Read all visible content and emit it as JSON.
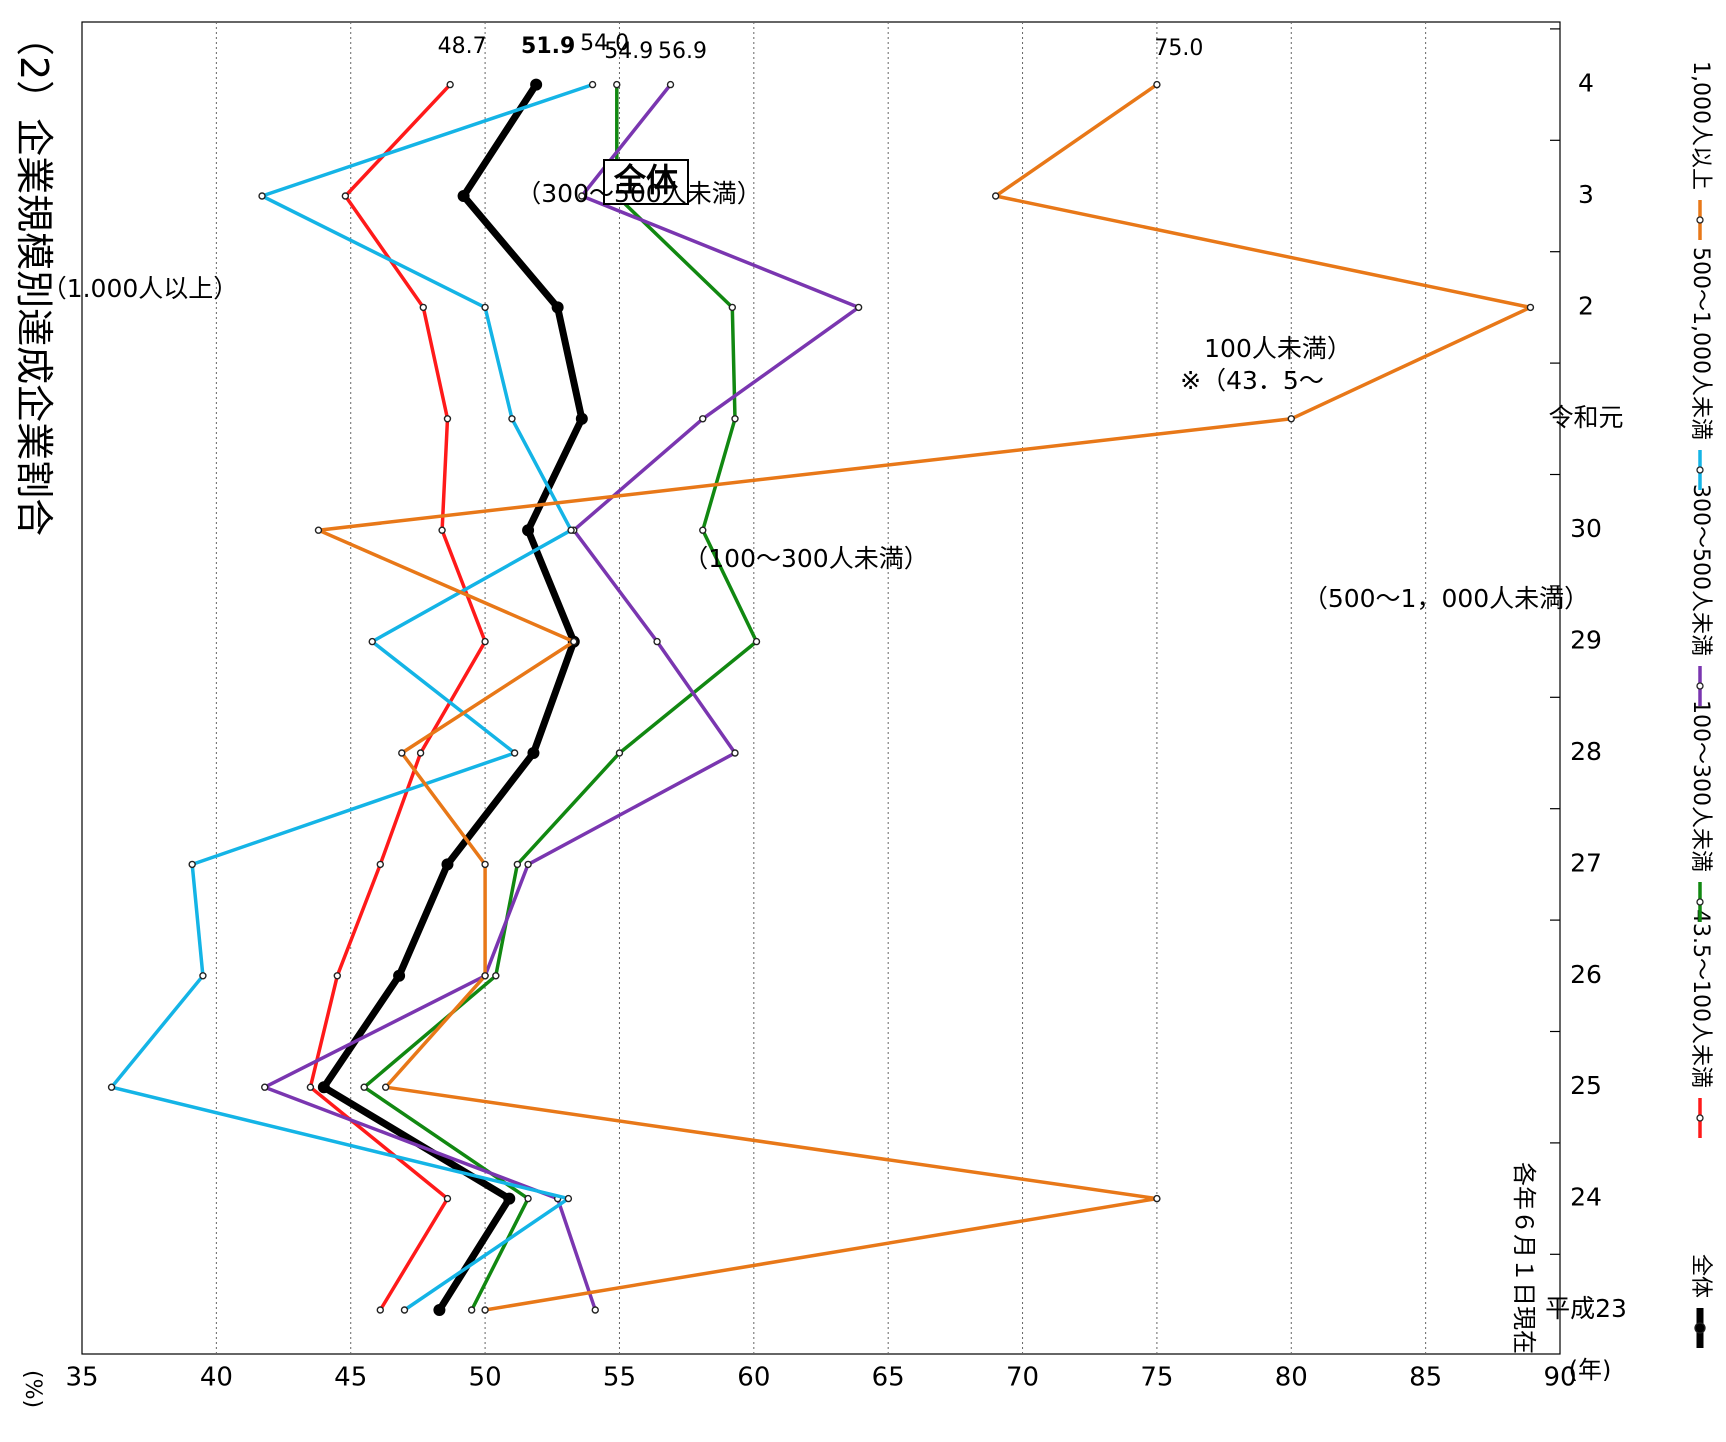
{
  "page": {
    "title": "（2）企業規模別達成企業割合",
    "date_note": "各年６月１日現在",
    "y_unit": "(%)",
    "x_unit": "(年)"
  },
  "chart_data": {
    "type": "line",
    "orientation": "rotated 90° clockwise (year axis runs along the right edge, percent axis along the bottom)",
    "categories": [
      "平成23",
      "24",
      "25",
      "26",
      "27",
      "28",
      "29",
      "30",
      "令和元",
      "2",
      "3",
      "4"
    ],
    "ylim": [
      35,
      90
    ],
    "y_ticks": [
      35,
      40,
      45,
      50,
      55,
      60,
      65,
      70,
      75,
      80,
      85,
      90
    ],
    "grid": "major gridlines every 5% (dotted)",
    "legend_position": "right edge, vertical",
    "series": [
      {
        "key": "all",
        "name": "全体",
        "color": "#000000",
        "width": 7,
        "values": [
          48.3,
          50.9,
          44.0,
          46.8,
          48.6,
          51.8,
          53.3,
          51.6,
          53.6,
          52.7,
          49.2,
          51.9
        ]
      },
      {
        "key": "s43",
        "name": "43.5～100人未満",
        "color": "#ff1a1a",
        "width": 3.5,
        "values": [
          46.1,
          48.6,
          43.5,
          44.5,
          46.1,
          47.6,
          50.0,
          48.4,
          48.6,
          47.7,
          44.8,
          48.7
        ]
      },
      {
        "key": "s100",
        "name": "100～300人未満",
        "color": "#118811",
        "width": 3.5,
        "values": [
          49.5,
          51.6,
          45.5,
          50.4,
          51.2,
          55.0,
          60.1,
          58.1,
          59.3,
          59.2,
          54.9,
          54.9
        ]
      },
      {
        "key": "s300",
        "name": "300～500人未満",
        "color": "#7a36b0",
        "width": 3.5,
        "values": [
          54.1,
          52.7,
          41.8,
          50.0,
          51.6,
          59.3,
          56.4,
          53.3,
          58.1,
          63.9,
          53.6,
          56.9
        ]
      },
      {
        "key": "s500",
        "name": "500～1,000人未満",
        "color": "#14b4e6",
        "width": 3.5,
        "values": [
          47.0,
          53.1,
          36.1,
          39.5,
          39.1,
          51.1,
          45.8,
          53.2,
          51.0,
          50.0,
          41.7,
          54.0
        ]
      },
      {
        "key": "s1000",
        "name": "1,000人以上",
        "color": "#e87818",
        "width": 3.5,
        "values": [
          50.0,
          75.0,
          46.3,
          50.0,
          50.0,
          46.9,
          53.3,
          43.8,
          80.0,
          88.9,
          69.0,
          75.0
        ]
      }
    ],
    "end_labels": [
      "51.9",
      "48.7",
      "54.9",
      "56.9",
      "54.0",
      "75.0"
    ],
    "annotations": [
      {
        "text": "全体",
        "boxed": true
      },
      {
        "text": "（1.000人以上）"
      },
      {
        "text": "（300～500人未満）"
      },
      {
        "text": "（100～300人未満）"
      },
      {
        "text": "※（43．5～"
      },
      {
        "text": "100人未満）"
      },
      {
        "text": "（500～1，000人未満）"
      }
    ]
  }
}
